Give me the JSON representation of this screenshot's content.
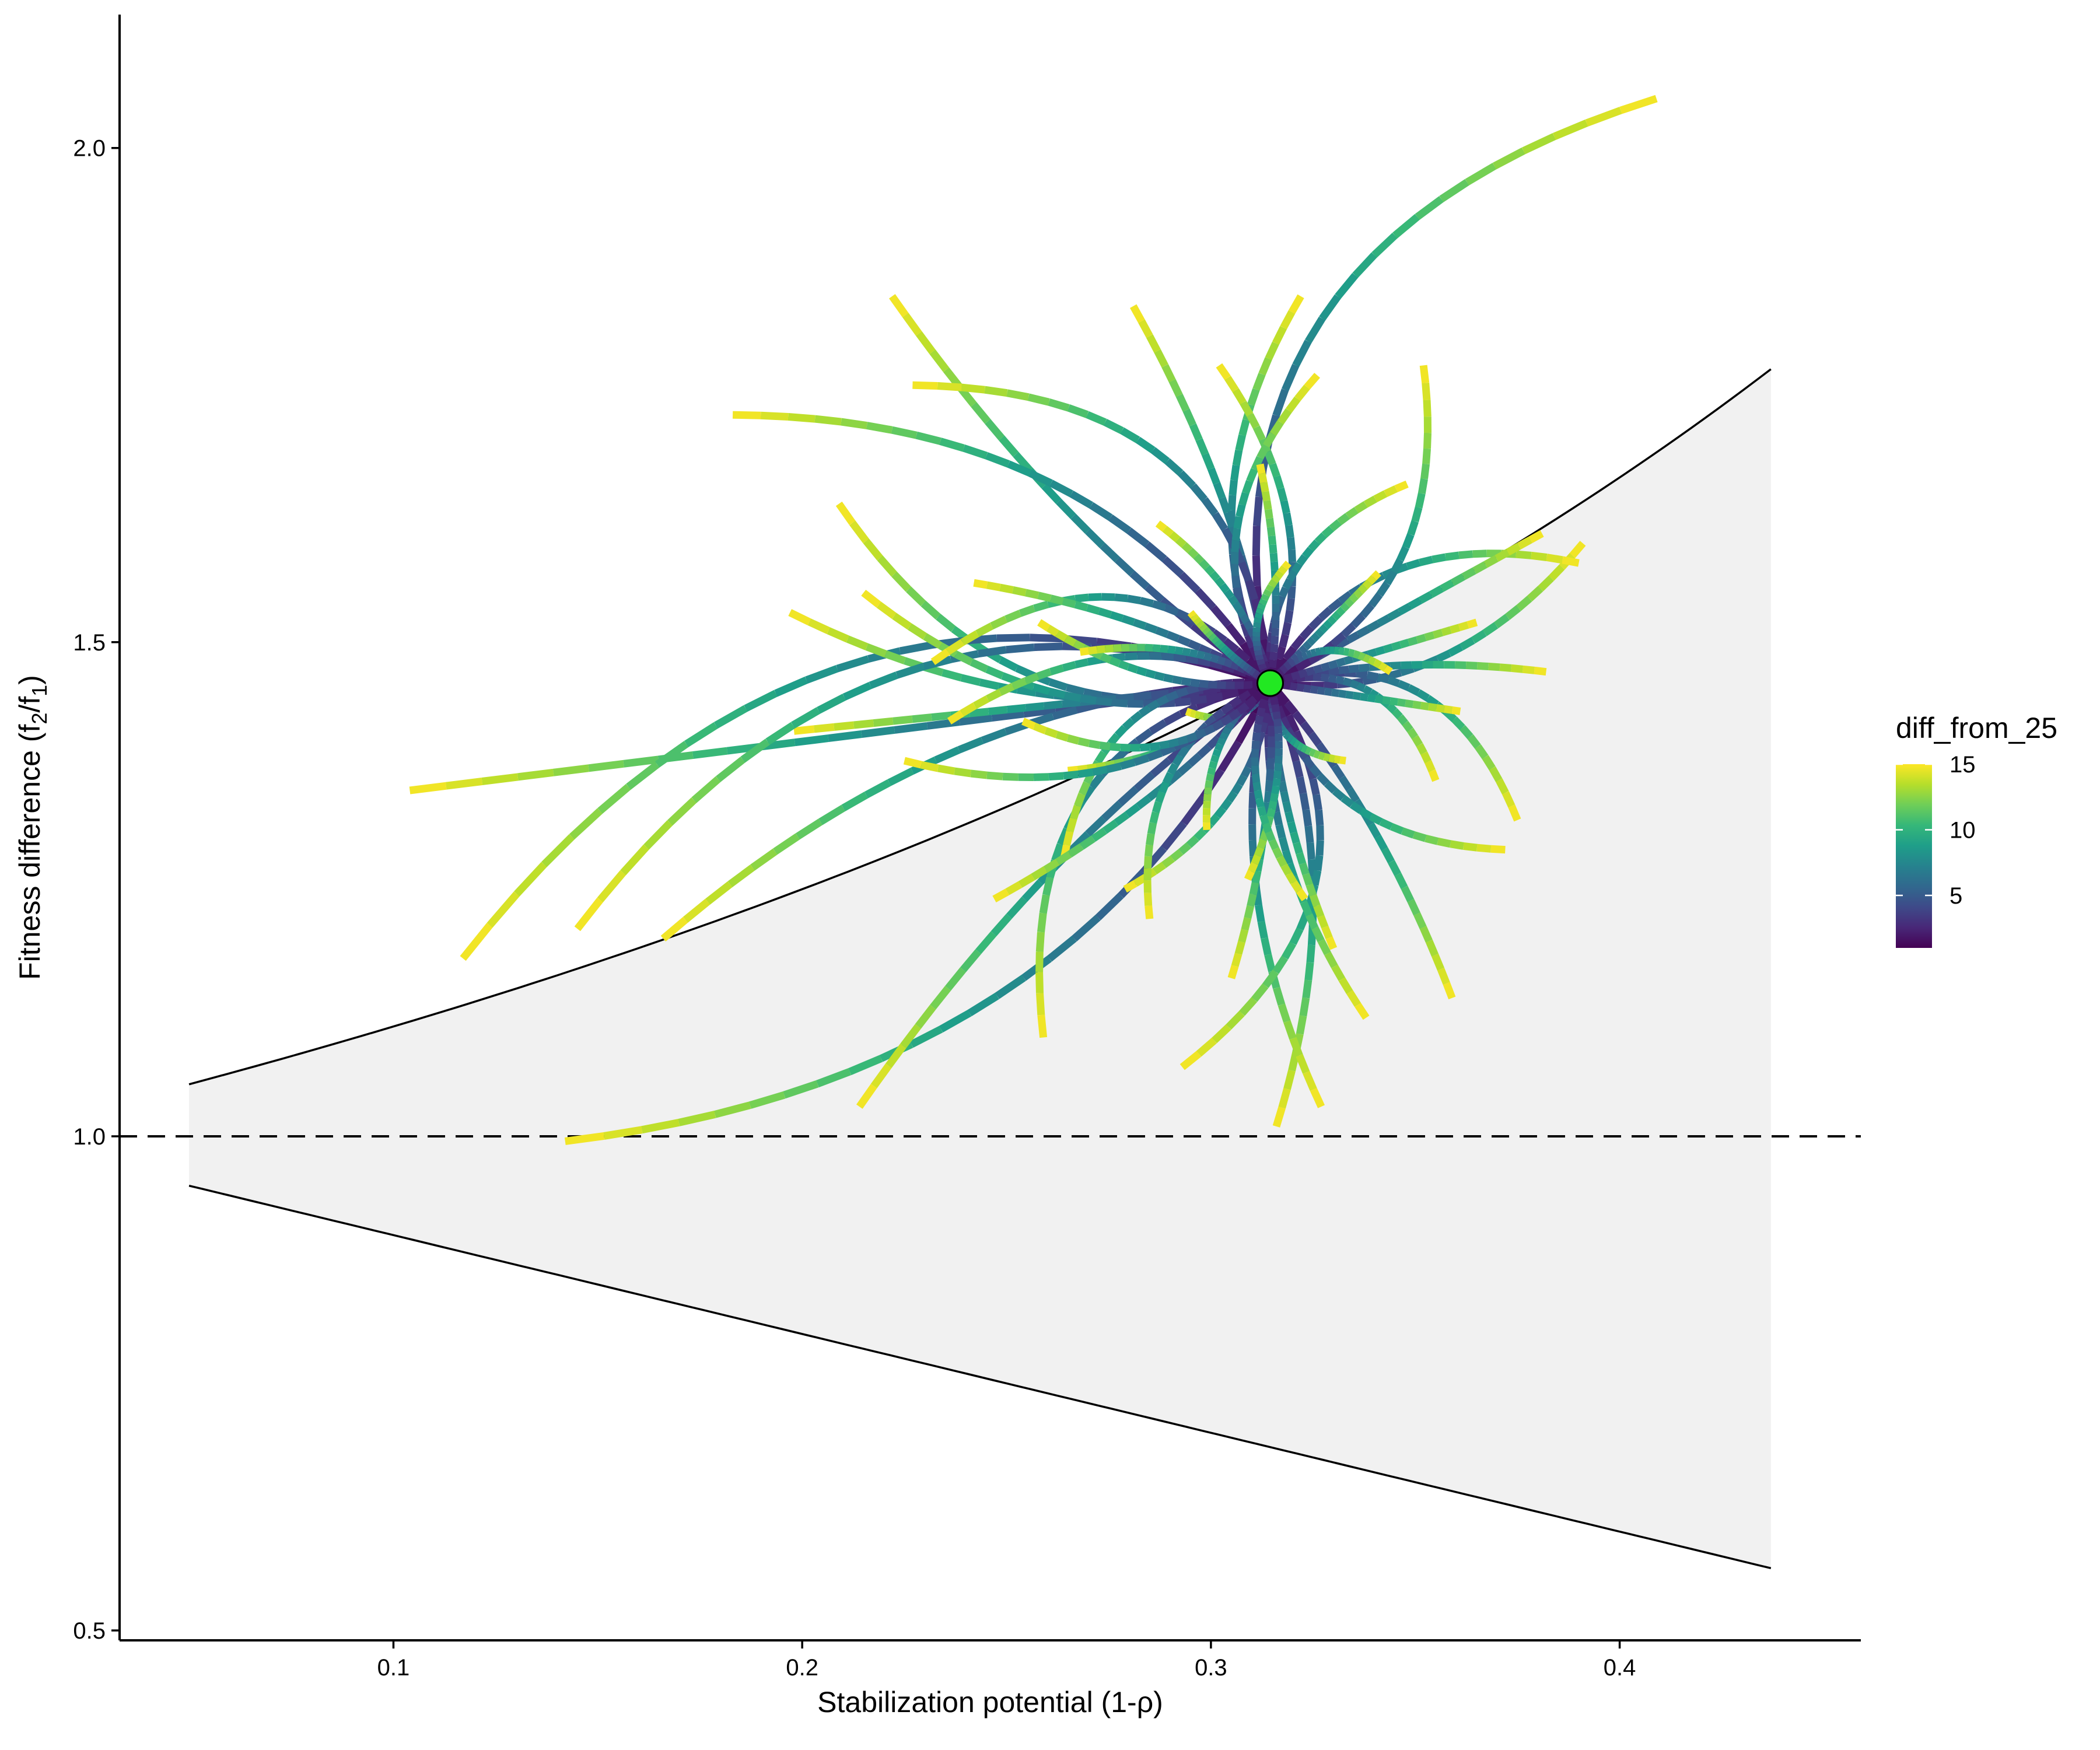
{
  "chart_data": {
    "type": "line",
    "xlabel": "Stabilization potential (1-ρ)",
    "ylabel": {
      "main": "Fitness difference (f",
      "sub1": "2",
      "mid": "/f",
      "sub2": "1",
      "end": ")"
    },
    "x_ticks": [
      {
        "value": 0.1,
        "label": "0.1"
      },
      {
        "value": 0.2,
        "label": "0.2"
      },
      {
        "value": 0.3,
        "label": "0.3"
      },
      {
        "value": 0.4,
        "label": "0.4"
      }
    ],
    "y_ticks": [
      {
        "value": 0.5,
        "label": "0.5"
      },
      {
        "value": 1.0,
        "label": "1.0"
      },
      {
        "value": 1.5,
        "label": "1.5"
      },
      {
        "value": 2.0,
        "label": "2.0"
      }
    ],
    "xlim": [
      0.033,
      0.459
    ],
    "ylim": [
      0.49,
      2.135
    ],
    "grid": false,
    "scale": "linear",
    "coexistence_region": {
      "fill_color": "#f1f1f1",
      "x_range": [
        0.05,
        0.437
      ]
    },
    "reference_line": {
      "y": 1.0,
      "style": "dashed",
      "color": "#000000"
    },
    "center_point": {
      "x": 0.3145,
      "y": 1.4585,
      "color": "#22e822",
      "label": ""
    },
    "color_scale": {
      "name": "viridis",
      "title": "diff_from_25",
      "min": 1,
      "max": 15,
      "ticks": [
        5,
        10,
        15
      ],
      "stops": [
        "#440154",
        "#482878",
        "#3e4a89",
        "#31688e",
        "#26828e",
        "#1f9e89",
        "#35b779",
        "#6ece58",
        "#b5de2b",
        "#fde725"
      ]
    },
    "legend_position": "right",
    "trajectory_endpoints": [
      [
        0.409,
        2.05
      ],
      [
        0.222,
        1.85
      ],
      [
        0.183,
        1.73
      ],
      [
        0.209,
        1.64
      ],
      [
        0.104,
        1.35
      ],
      [
        0.117,
        1.18
      ],
      [
        0.142,
        0.995
      ],
      [
        0.214,
        1.03
      ],
      [
        0.259,
        1.1
      ],
      [
        0.316,
        1.01
      ],
      [
        0.327,
        1.03
      ],
      [
        0.293,
        1.07
      ],
      [
        0.359,
        1.14
      ],
      [
        0.391,
        1.6
      ],
      [
        0.39,
        1.58
      ],
      [
        0.381,
        1.61
      ],
      [
        0.352,
        1.78
      ],
      [
        0.322,
        1.85
      ],
      [
        0.281,
        1.84
      ],
      [
        0.227,
        1.76
      ],
      [
        0.197,
        1.53
      ],
      [
        0.166,
        1.2
      ],
      [
        0.375,
        1.32
      ],
      [
        0.382,
        1.47
      ],
      [
        0.302,
        1.78
      ],
      [
        0.348,
        1.66
      ],
      [
        0.198,
        1.41
      ],
      [
        0.145,
        1.21
      ],
      [
        0.215,
        1.55
      ],
      [
        0.33,
        1.19
      ],
      [
        0.264,
        1.28
      ],
      [
        0.265,
        1.37
      ],
      [
        0.338,
        1.12
      ],
      [
        0.294,
        1.43
      ],
      [
        0.305,
        1.16
      ],
      [
        0.236,
        1.42
      ],
      [
        0.326,
        1.77
      ],
      [
        0.341,
        1.57
      ],
      [
        0.372,
        1.29
      ],
      [
        0.279,
        1.25
      ],
      [
        0.312,
        1.68
      ],
      [
        0.232,
        1.48
      ],
      [
        0.258,
        1.52
      ],
      [
        0.287,
        1.62
      ],
      [
        0.355,
        1.36
      ],
      [
        0.247,
        1.24
      ],
      [
        0.299,
        1.31
      ],
      [
        0.319,
        1.58
      ],
      [
        0.365,
        1.52
      ],
      [
        0.285,
        1.22
      ],
      [
        0.225,
        1.38
      ],
      [
        0.242,
        1.56
      ],
      [
        0.333,
        1.38
      ],
      [
        0.309,
        1.26
      ],
      [
        0.268,
        1.49
      ],
      [
        0.344,
        1.47
      ],
      [
        0.295,
        1.53
      ],
      [
        0.323,
        1.24
      ],
      [
        0.254,
        1.42
      ],
      [
        0.361,
        1.43
      ]
    ]
  }
}
